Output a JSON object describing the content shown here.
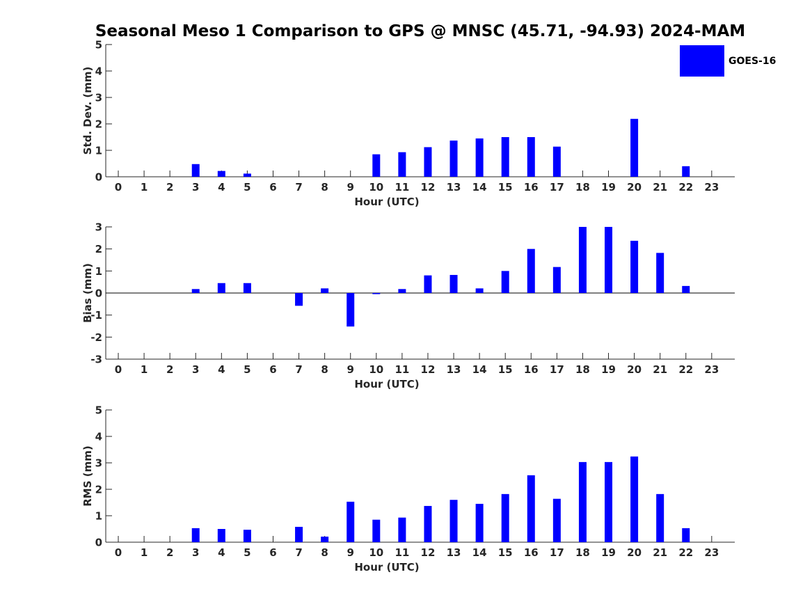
{
  "title": "Seasonal Meso 1 Comparison to GPS @ MNSC (45.71, -94.93) 2024-MAM",
  "bar_color": "#0000ff",
  "legend": {
    "label": "GOES-16",
    "placement": "top-right"
  },
  "chart_data": [
    {
      "type": "bar",
      "xlabel": "Hour (UTC)",
      "ylabel": "Std. Dev. (mm)",
      "ylim": [
        0,
        5
      ],
      "yticks": [
        "0",
        "1",
        "2",
        "3",
        "4",
        "5"
      ],
      "categories": [
        "0",
        "1",
        "2",
        "3",
        "4",
        "5",
        "6",
        "7",
        "8",
        "9",
        "10",
        "11",
        "12",
        "13",
        "14",
        "15",
        "16",
        "17",
        "18",
        "19",
        "20",
        "21",
        "22",
        "23"
      ],
      "series": [
        {
          "name": "GOES-16",
          "values": [
            0,
            0,
            0,
            0.48,
            0.22,
            0.12,
            0,
            0,
            0,
            0,
            0.85,
            0.93,
            1.12,
            1.37,
            1.45,
            1.5,
            1.5,
            1.14,
            0,
            0,
            2.19,
            0,
            0.4,
            0
          ]
        }
      ]
    },
    {
      "type": "bar",
      "xlabel": "Hour (UTC)",
      "ylabel": "Bias (mm)",
      "ylim": [
        -3,
        3
      ],
      "yticks": [
        "-3",
        "-2",
        "-1",
        "0",
        "1",
        "2",
        "3"
      ],
      "categories": [
        "0",
        "1",
        "2",
        "3",
        "4",
        "5",
        "6",
        "7",
        "8",
        "9",
        "10",
        "11",
        "12",
        "13",
        "14",
        "15",
        "16",
        "17",
        "18",
        "19",
        "20",
        "21",
        "22",
        "23"
      ],
      "series": [
        {
          "name": "GOES-16",
          "values": [
            0,
            0,
            0,
            0.18,
            0.45,
            0.45,
            0,
            -0.58,
            0.21,
            -1.52,
            -0.05,
            0.18,
            0.8,
            0.82,
            0.21,
            1.0,
            2.0,
            1.18,
            3.0,
            3.0,
            2.37,
            1.82,
            0.32,
            0
          ]
        }
      ]
    },
    {
      "type": "bar",
      "xlabel": "Hour (UTC)",
      "ylabel": "RMS (mm)",
      "ylim": [
        0,
        5
      ],
      "yticks": [
        "0",
        "1",
        "2",
        "3",
        "4",
        "5"
      ],
      "categories": [
        "0",
        "1",
        "2",
        "3",
        "4",
        "5",
        "6",
        "7",
        "8",
        "9",
        "10",
        "11",
        "12",
        "13",
        "14",
        "15",
        "16",
        "17",
        "18",
        "19",
        "20",
        "21",
        "22",
        "23"
      ],
      "series": [
        {
          "name": "GOES-16",
          "values": [
            0,
            0,
            0,
            0.53,
            0.5,
            0.47,
            0,
            0.58,
            0.21,
            1.53,
            0.85,
            0.93,
            1.37,
            1.6,
            1.45,
            1.82,
            2.53,
            1.64,
            3.03,
            3.03,
            3.24,
            1.82,
            0.53,
            0
          ]
        }
      ]
    }
  ]
}
